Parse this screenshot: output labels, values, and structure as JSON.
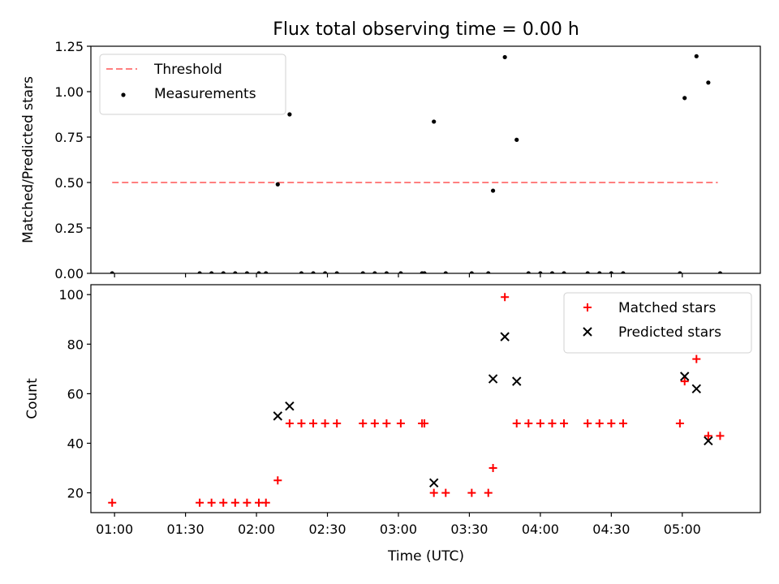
{
  "figure": {
    "title": "Flux total observing time = 0.00 h",
    "xlabel": "Time (UTC)"
  },
  "chart_data": [
    {
      "type": "scatter",
      "panel": "top",
      "ylabel": "Matched/Predicted stars",
      "ylim": [
        0,
        1.25
      ],
      "yticks": [
        "0.00",
        "0.25",
        "0.50",
        "0.75",
        "1.00",
        "1.25"
      ],
      "xlim": [
        "00:50",
        "05:33"
      ],
      "xticks": [
        "01:00",
        "01:30",
        "02:00",
        "02:30",
        "03:00",
        "03:30",
        "04:00",
        "04:30",
        "05:00"
      ],
      "show_xticklabels": false,
      "grid": false,
      "legend_position": "top-left",
      "series": [
        {
          "name": "Threshold",
          "kind": "line",
          "style": "dashed",
          "color": "#ff7f7f",
          "x": [
            "00:59",
            "05:15"
          ],
          "y": [
            0.5,
            0.5
          ]
        },
        {
          "name": "Measurements",
          "kind": "scatter",
          "marker": "dot",
          "color": "#000000",
          "points": [
            [
              "00:59",
              0
            ],
            [
              "01:36",
              0
            ],
            [
              "01:41",
              0
            ],
            [
              "01:46",
              0
            ],
            [
              "01:51",
              0
            ],
            [
              "01:56",
              0
            ],
            [
              "02:01",
              0
            ],
            [
              "02:04",
              0
            ],
            [
              "02:09",
              0.49
            ],
            [
              "02:14",
              0.875
            ],
            [
              "02:19",
              0
            ],
            [
              "02:24",
              0
            ],
            [
              "02:29",
              0
            ],
            [
              "02:34",
              0
            ],
            [
              "02:45",
              0
            ],
            [
              "02:50",
              0
            ],
            [
              "02:55",
              0
            ],
            [
              "03:01",
              0
            ],
            [
              "03:10",
              0
            ],
            [
              "03:11",
              0
            ],
            [
              "03:15",
              0.835
            ],
            [
              "03:20",
              0
            ],
            [
              "03:31",
              0
            ],
            [
              "03:38",
              0
            ],
            [
              "03:40",
              0.455
            ],
            [
              "03:45",
              1.19
            ],
            [
              "03:50",
              0.735
            ],
            [
              "03:55",
              0
            ],
            [
              "04:00",
              0
            ],
            [
              "04:05",
              0
            ],
            [
              "04:10",
              0
            ],
            [
              "04:20",
              0
            ],
            [
              "04:25",
              0
            ],
            [
              "04:30",
              0
            ],
            [
              "04:35",
              0
            ],
            [
              "04:59",
              0
            ],
            [
              "05:01",
              0.965
            ],
            [
              "05:06",
              1.195
            ],
            [
              "05:11",
              1.05
            ],
            [
              "05:16",
              0
            ]
          ]
        }
      ]
    },
    {
      "type": "scatter",
      "panel": "bottom",
      "ylabel": "Count",
      "ylim": [
        12,
        104
      ],
      "yticks": [
        "20",
        "40",
        "60",
        "80",
        "100"
      ],
      "xlim": [
        "00:50",
        "05:33"
      ],
      "xticks": [
        "01:00",
        "01:30",
        "02:00",
        "02:30",
        "03:00",
        "03:30",
        "04:00",
        "04:30",
        "05:00"
      ],
      "show_xticklabels": true,
      "grid": false,
      "legend_position": "top-right",
      "series": [
        {
          "name": "Matched stars",
          "kind": "scatter",
          "marker": "plus",
          "color": "#ff0000",
          "points": [
            [
              "00:59",
              16
            ],
            [
              "01:36",
              16
            ],
            [
              "01:41",
              16
            ],
            [
              "01:46",
              16
            ],
            [
              "01:51",
              16
            ],
            [
              "01:56",
              16
            ],
            [
              "02:01",
              16
            ],
            [
              "02:04",
              16
            ],
            [
              "02:09",
              25
            ],
            [
              "02:14",
              48
            ],
            [
              "02:19",
              48
            ],
            [
              "02:24",
              48
            ],
            [
              "02:29",
              48
            ],
            [
              "02:34",
              48
            ],
            [
              "02:45",
              48
            ],
            [
              "02:50",
              48
            ],
            [
              "02:55",
              48
            ],
            [
              "03:01",
              48
            ],
            [
              "03:10",
              48
            ],
            [
              "03:11",
              48
            ],
            [
              "03:15",
              20
            ],
            [
              "03:20",
              20
            ],
            [
              "03:31",
              20
            ],
            [
              "03:38",
              20
            ],
            [
              "03:40",
              30
            ],
            [
              "03:45",
              99
            ],
            [
              "03:50",
              48
            ],
            [
              "03:55",
              48
            ],
            [
              "04:00",
              48
            ],
            [
              "04:05",
              48
            ],
            [
              "04:10",
              48
            ],
            [
              "04:20",
              48
            ],
            [
              "04:25",
              48
            ],
            [
              "04:30",
              48
            ],
            [
              "04:35",
              48
            ],
            [
              "04:59",
              48
            ],
            [
              "05:01",
              65
            ],
            [
              "05:06",
              74
            ],
            [
              "05:11",
              43
            ],
            [
              "05:16",
              43
            ]
          ]
        },
        {
          "name": "Predicted stars",
          "kind": "scatter",
          "marker": "x",
          "color": "#000000",
          "points": [
            [
              "02:09",
              51
            ],
            [
              "02:14",
              55
            ],
            [
              "03:15",
              24
            ],
            [
              "03:40",
              66
            ],
            [
              "03:45",
              83
            ],
            [
              "03:50",
              65
            ],
            [
              "05:01",
              67
            ],
            [
              "05:06",
              62
            ],
            [
              "05:11",
              41
            ]
          ]
        }
      ]
    }
  ]
}
